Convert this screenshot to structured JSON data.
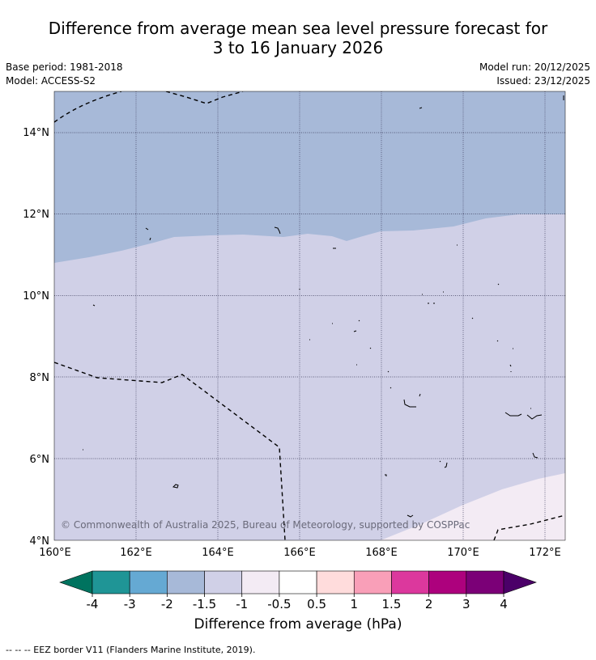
{
  "header": {
    "title_line1": "Difference from average mean sea level pressure forecast for",
    "title_line2": "3 to 16 January 2026",
    "base_period": "Base period: 1981-2018",
    "model": "Model: ACCESS-S2",
    "model_run": "Model run: 20/12/2025",
    "issued": "Issued: 23/12/2025"
  },
  "map": {
    "lat_labels": [
      "14°N",
      "12°N",
      "10°N",
      "8°N",
      "6°N",
      "4°N"
    ],
    "lon_labels": [
      "160°E",
      "162°E",
      "164°E",
      "166°E",
      "168°E",
      "170°E",
      "172°E"
    ],
    "lat_range": [
      4,
      15.0
    ],
    "lon_range": [
      160,
      172.5
    ],
    "copyright": "© Commonwealth of Australia 2025, Bureau of Meteorology, supported by COSPPac",
    "region_colors": {
      "minus2_to_minus1_5": "#a7b9d8",
      "minus1_5_to_minus1": "#d0d0e7",
      "minus1_to_minus0_5": "#f3ebf4"
    }
  },
  "colorbar": {
    "title": "Difference from average (hPa)",
    "ticks": [
      "-4",
      "-3",
      "-2",
      "-1.5",
      "-1",
      "-0.5",
      "0.5",
      "1",
      "1.5",
      "2",
      "3",
      "4"
    ],
    "low_extend_color": "#00735f",
    "high_extend_color": "#4b0068",
    "colors": [
      "#1f9596",
      "#65a9d3",
      "#a7b9d8",
      "#d0d0e7",
      "#f3ebf4",
      "#ffffff",
      "#ffdcdc",
      "#f99fb8",
      "#dc389d",
      "#ad017d",
      "#7b0077"
    ]
  },
  "footnote": "--  --  -- EEZ border V11 (Flanders Marine Institute, 2019)."
}
